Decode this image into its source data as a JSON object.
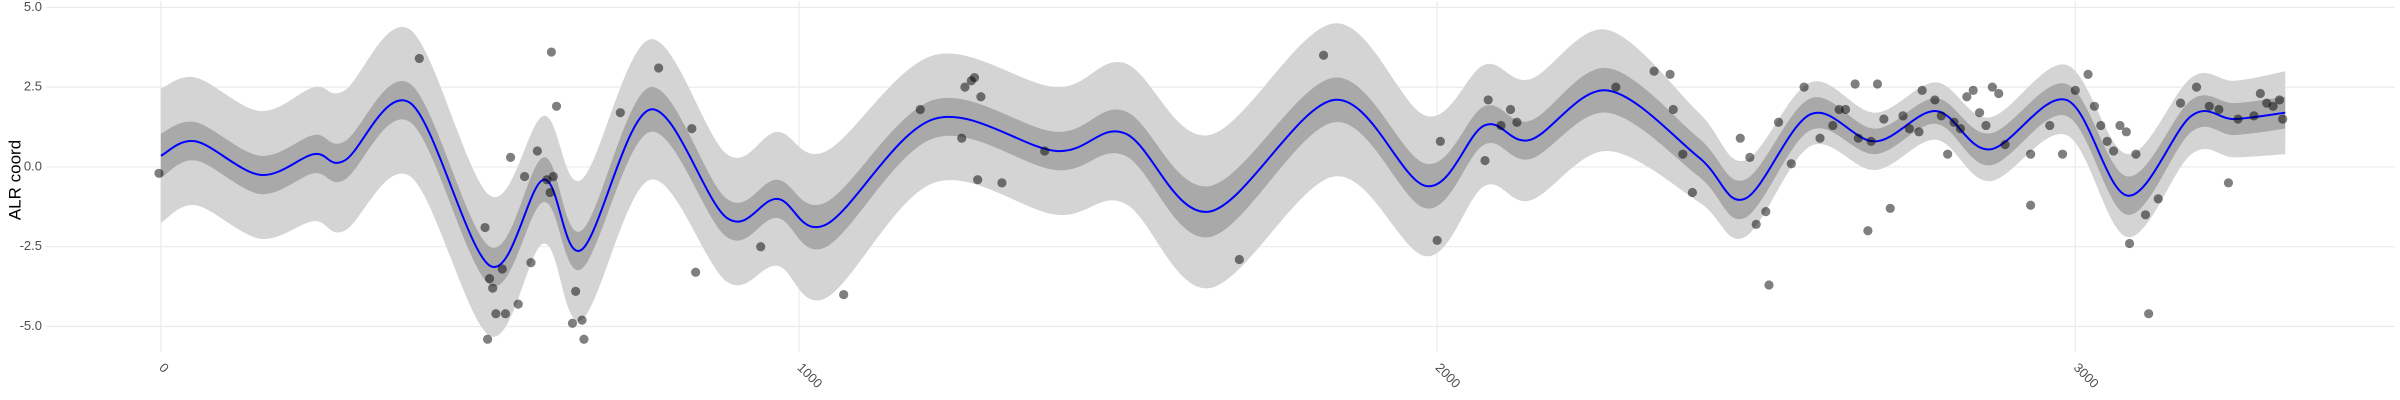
{
  "chart_data": {
    "type": "scatter",
    "y_label": "ALR coord",
    "xlim": [
      -180,
      3501
    ],
    "ylim": [
      -5.8,
      5.2
    ],
    "xticks": [
      0,
      1000,
      2000,
      3000
    ],
    "yticks": [
      {
        "value": -5,
        "label": "-5.0"
      },
      {
        "value": -2.5,
        "label": "-2.5"
      },
      {
        "value": 0,
        "label": "0.0"
      },
      {
        "value": 2.5,
        "label": "2.5"
      },
      {
        "value": 5,
        "label": "5.0"
      }
    ],
    "grid": true,
    "smooth": {
      "color": "#0000ff",
      "x": [
        0,
        55,
        156,
        240,
        288,
        391,
        516,
        600,
        659,
        767,
        887,
        966,
        1043,
        1211,
        1403,
        1511,
        1643,
        1839,
        1983,
        2074,
        2146,
        2266,
        2410,
        2482,
        2585,
        2686,
        2782,
        2866,
        2986,
        3082,
        3182,
        3249,
        3329
      ],
      "values": [
        0.35,
        0.8,
        -0.25,
        0.4,
        0.2,
        2.0,
        -3.1,
        -0.4,
        -2.6,
        1.8,
        -1.6,
        -1.0,
        -1.8,
        1.5,
        0.5,
        1.05,
        -1.4,
        2.1,
        -0.6,
        1.3,
        0.85,
        2.4,
        0.3,
        -1.0,
        1.65,
        0.8,
        1.75,
        0.55,
        2.1,
        -0.9,
        1.6,
        1.5,
        1.7
      ]
    },
    "bands": [
      {
        "color": "#d4d4d4",
        "lower": [
          -1.75,
          -1.2,
          -2.25,
          -1.7,
          -2.0,
          -0.3,
          -5.3,
          -2.4,
          -4.8,
          -0.4,
          -3.6,
          -3.1,
          -4.1,
          -0.5,
          -1.5,
          -1.15,
          -3.8,
          -0.3,
          -2.8,
          -0.6,
          -1.05,
          0.5,
          -1.1,
          -2.2,
          0.65,
          -0.1,
          0.85,
          -0.45,
          1.0,
          -2.2,
          0.4,
          0.3,
          0.4
        ],
        "upper": [
          2.45,
          2.8,
          1.75,
          2.5,
          2.4,
          4.3,
          -0.9,
          1.6,
          -0.4,
          4.0,
          0.4,
          1.1,
          0.5,
          3.5,
          2.5,
          3.25,
          1.0,
          4.5,
          1.6,
          3.2,
          2.75,
          4.3,
          1.7,
          0.2,
          2.65,
          1.7,
          2.65,
          1.55,
          3.2,
          0.4,
          2.8,
          2.7,
          3.0
        ]
      },
      {
        "color": "#a9a9a9",
        "lower": [
          -0.35,
          0.2,
          -0.85,
          -0.2,
          -0.4,
          1.4,
          -3.7,
          -1.1,
          -3.2,
          1.1,
          -2.2,
          -1.6,
          -2.5,
          0.9,
          -0.1,
          0.35,
          -2.2,
          1.4,
          -1.3,
          0.7,
          0.25,
          1.7,
          -0.3,
          -1.6,
          1.15,
          0.4,
          1.35,
          0.05,
          1.6,
          -1.5,
          1.1,
          1.0,
          1.2
        ],
        "upper": [
          1.05,
          1.4,
          0.35,
          1.0,
          0.8,
          2.6,
          -2.5,
          0.3,
          -2.0,
          2.5,
          -1.0,
          -0.4,
          -1.1,
          2.1,
          1.1,
          1.75,
          -0.6,
          2.8,
          0.1,
          1.9,
          1.45,
          3.1,
          0.9,
          -0.4,
          2.15,
          1.2,
          2.15,
          1.05,
          2.6,
          -0.3,
          2.1,
          2.0,
          2.2
        ]
      }
    ],
    "points": {
      "color": "#000000",
      "x": [
        -3,
        405,
        508,
        515,
        520,
        512,
        525,
        540,
        535,
        548,
        560,
        570,
        580,
        590,
        605,
        610,
        615,
        612,
        620,
        645,
        650,
        660,
        663,
        720,
        780,
        832,
        838,
        940,
        1070,
        1190,
        1255,
        1260,
        1270,
        1275,
        1285,
        1280,
        1318,
        1385,
        1690,
        1822,
        2000,
        2005,
        2075,
        2080,
        2100,
        2115,
        2125,
        2280,
        2340,
        2365,
        2370,
        2385,
        2400,
        2475,
        2490,
        2500,
        2515,
        2520,
        2535,
        2555,
        2575,
        2600,
        2620,
        2630,
        2640,
        2655,
        2660,
        2675,
        2680,
        2690,
        2700,
        2710,
        2730,
        2740,
        2755,
        2760,
        2780,
        2790,
        2800,
        2810,
        2820,
        2830,
        2840,
        2850,
        2860,
        2870,
        2880,
        2890,
        2930,
        2930,
        2960,
        2980,
        3000,
        3020,
        3030,
        3040,
        3050,
        3060,
        3070,
        3080,
        3085,
        3095,
        3110,
        3115,
        3130,
        3165,
        3190,
        3210,
        3225,
        3240,
        3255,
        3280,
        3290,
        3300,
        3310,
        3320,
        3325
      ],
      "values": [
        -0.2,
        3.4,
        -1.9,
        -3.5,
        -3.8,
        -5.4,
        -4.6,
        -4.6,
        -3.2,
        0.3,
        -4.3,
        -0.3,
        -3.0,
        0.5,
        -0.4,
        -0.8,
        -0.3,
        3.6,
        1.9,
        -4.9,
        -3.9,
        -4.8,
        -5.4,
        1.7,
        3.1,
        1.2,
        -3.3,
        -2.5,
        -4.0,
        1.8,
        0.9,
        2.5,
        2.7,
        2.8,
        2.2,
        -0.4,
        -0.5,
        0.5,
        -2.9,
        3.5,
        -2.3,
        0.8,
        0.2,
        2.1,
        1.3,
        1.8,
        1.4,
        2.5,
        3.0,
        2.9,
        1.8,
        0.4,
        -0.8,
        0.9,
        0.3,
        -1.8,
        -1.4,
        -3.7,
        1.4,
        0.1,
        2.5,
        0.9,
        1.3,
        1.8,
        1.8,
        2.6,
        0.9,
        -2.0,
        0.8,
        2.6,
        1.5,
        -1.3,
        1.6,
        1.2,
        1.1,
        2.4,
        2.1,
        1.6,
        0.4,
        1.4,
        1.2,
        2.2,
        2.4,
        1.7,
        1.3,
        2.5,
        2.3,
        0.7,
        0.4,
        -1.2,
        1.3,
        0.4,
        2.4,
        2.9,
        1.9,
        1.3,
        0.8,
        0.5,
        1.3,
        1.1,
        -2.4,
        0.4,
        -1.5,
        -4.6,
        -1.0,
        2.0,
        2.5,
        1.9,
        1.8,
        -0.5,
        1.5,
        1.6,
        2.3,
        2.0,
        1.9,
        2.1,
        1.5
      ]
    }
  }
}
